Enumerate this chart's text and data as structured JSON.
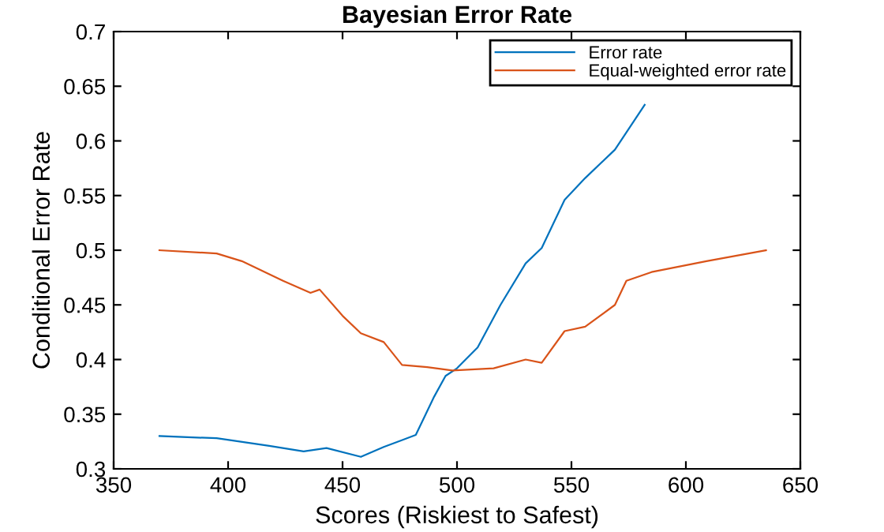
{
  "chart_data": {
    "type": "line",
    "title": "Bayesian Error Rate",
    "xlabel": "Scores (Riskiest to Safest)",
    "ylabel": "Conditional Error Rate",
    "xlim": [
      350,
      650
    ],
    "xticks": [
      350,
      400,
      450,
      500,
      550,
      600,
      650
    ],
    "ylim": [
      0.3,
      0.7
    ],
    "yticks": [
      0.3,
      0.35,
      0.4,
      0.45,
      0.5,
      0.55,
      0.6,
      0.65,
      0.7
    ],
    "grid": false,
    "legend": "top right",
    "series": [
      {
        "name": "Error rate",
        "color": "#0072bd",
        "x": [
          370,
          395,
          418,
          433,
          443,
          458,
          468,
          482,
          490,
          495,
          500,
          509,
          519,
          530,
          537,
          547,
          556,
          569,
          582
        ],
        "values": [
          0.33,
          0.328,
          0.321,
          0.316,
          0.319,
          0.311,
          0.32,
          0.331,
          0.366,
          0.385,
          0.392,
          0.411,
          0.45,
          0.488,
          0.502,
          0.546,
          0.566,
          0.592,
          0.633
        ]
      },
      {
        "name": "Equal-weighted error rate",
        "color": "#d95319",
        "x": [
          370,
          395,
          406,
          424,
          436,
          440,
          450,
          458,
          468,
          476,
          487,
          498,
          516,
          530,
          537,
          547,
          556,
          569,
          574,
          585,
          609,
          635
        ],
        "values": [
          0.5,
          0.497,
          0.49,
          0.472,
          0.461,
          0.464,
          0.44,
          0.424,
          0.416,
          0.395,
          0.393,
          0.39,
          0.392,
          0.4,
          0.397,
          0.426,
          0.43,
          0.45,
          0.472,
          0.48,
          0.49,
          0.5
        ]
      }
    ]
  }
}
